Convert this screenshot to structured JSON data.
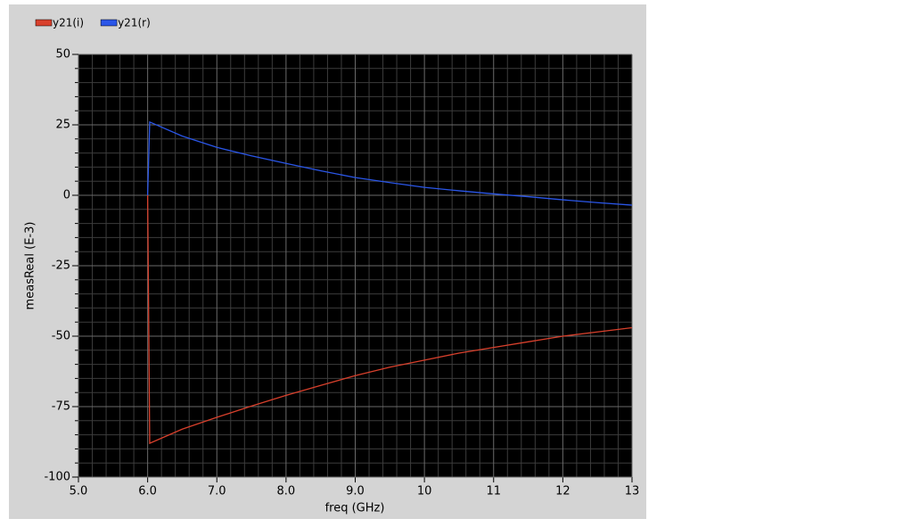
{
  "chart_data": {
    "type": "line",
    "x_label": "freq (GHz)",
    "y_label": "measReal (E-3)",
    "x": [
      6.0,
      6.03,
      6.5,
      7,
      7.5,
      8,
      8.5,
      9,
      9.5,
      10,
      10.5,
      11,
      11.5,
      12,
      12.5,
      13
    ],
    "series": [
      {
        "name": "y21(i)",
        "color": "#d8402c",
        "values": [
          0,
          -88,
          -83,
          -78.8,
          -74.8,
          -71,
          -67.5,
          -64,
          -61,
          -58.5,
          -56,
          -54,
          -52,
          -50,
          -48.5,
          -47
        ]
      },
      {
        "name": "y21(r)",
        "color": "#2a56e8",
        "values": [
          0,
          26,
          21,
          17,
          14,
          11.3,
          8.7,
          6.3,
          4.5,
          2.8,
          1.6,
          0.5,
          -0.5,
          -1.6,
          -2.6,
          -3.5
        ]
      }
    ],
    "xlim": [
      5,
      13
    ],
    "xticks": [
      {
        "value": 5,
        "label": "5.0"
      },
      {
        "value": 6,
        "label": "6.0"
      },
      {
        "value": 7,
        "label": "7.0"
      },
      {
        "value": 8,
        "label": "8.0"
      },
      {
        "value": 9,
        "label": "9.0"
      },
      10,
      11,
      12,
      13
    ],
    "ylim": [
      -100,
      50
    ],
    "yticks": [
      50,
      25,
      0,
      -25,
      -50,
      -75,
      -100
    ],
    "grid": true,
    "minor_grid": true,
    "legend": "top-left"
  }
}
